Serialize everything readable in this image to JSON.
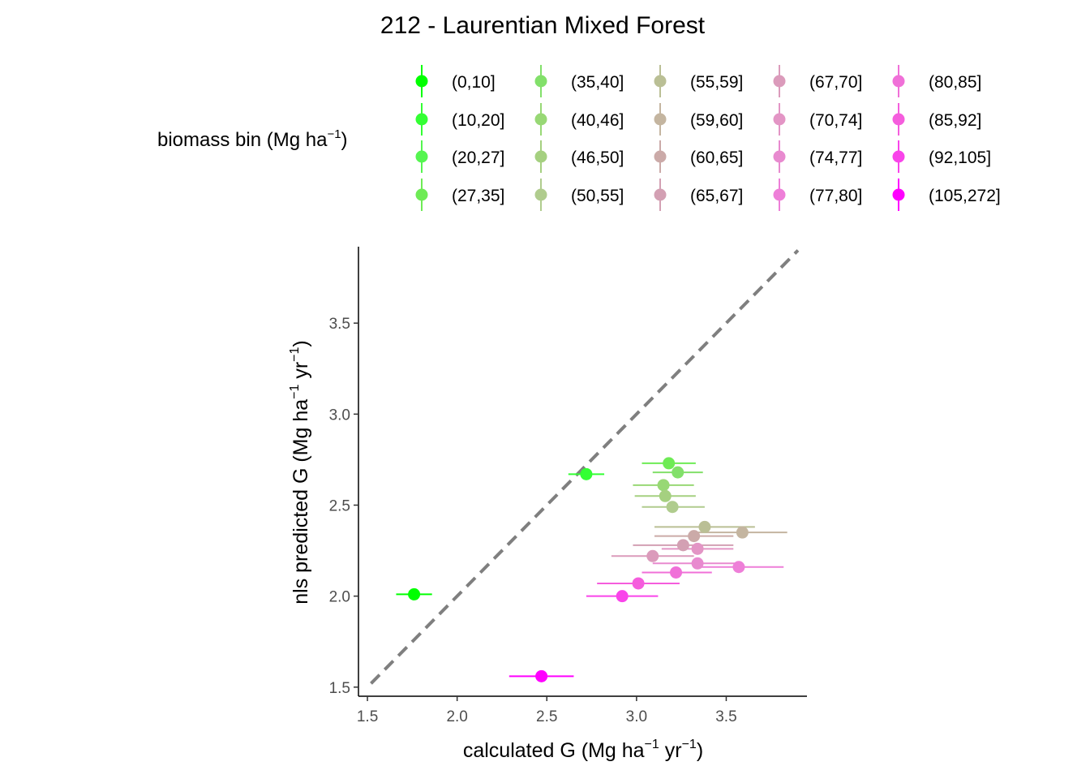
{
  "chart_data": {
    "type": "scatter",
    "title": "212 - Laurentian Mixed Forest",
    "xlabel": {
      "base": "calculated G (Mg ha",
      "sup1": "−1",
      "mid": " yr",
      "sup2": "−1",
      "end": ")"
    },
    "ylabel": {
      "base": "nls predicted G (Mg ha",
      "sup1": "−1",
      "mid": " yr",
      "sup2": "−1",
      "end": ")"
    },
    "xlim": [
      1.45,
      3.95
    ],
    "ylim": [
      1.45,
      3.92
    ],
    "x_ticks": [
      "1.5",
      "2.0",
      "2.5",
      "3.0",
      "3.5"
    ],
    "y_ticks": [
      "1.5",
      "2.0",
      "2.5",
      "3.0",
      "3.5"
    ],
    "grid": false,
    "reference_line": {
      "type": "identity",
      "style": "dashed",
      "color": "#7f7f7f",
      "from": 1.52,
      "to": 3.9
    },
    "legend": {
      "title": {
        "base": "biomass bin (Mg ha",
        "sup": "−1",
        "end": ")"
      },
      "position": "top",
      "ncol": 5
    },
    "series": [
      {
        "name": "(0,10]",
        "color": "#00FF00",
        "x": 1.76,
        "y": 2.01,
        "xerr": [
          1.66,
          1.86
        ]
      },
      {
        "name": "(10,20]",
        "color": "#33FF33",
        "x": 2.72,
        "y": 2.67,
        "xerr": [
          2.62,
          2.82
        ]
      },
      {
        "name": "(20,27]",
        "color": "#55F550",
        "x": null,
        "y": null,
        "xerr": null
      },
      {
        "name": "(27,35]",
        "color": "#6EEB55",
        "x": 3.18,
        "y": 2.73,
        "xerr": [
          3.03,
          3.33
        ]
      },
      {
        "name": "(35,40]",
        "color": "#82E06A",
        "x": 3.23,
        "y": 2.68,
        "xerr": [
          3.09,
          3.37
        ]
      },
      {
        "name": "(40,46]",
        "color": "#98D875",
        "x": 3.15,
        "y": 2.61,
        "xerr": [
          2.98,
          3.32
        ]
      },
      {
        "name": "(46,50]",
        "color": "#A5D080",
        "x": 3.16,
        "y": 2.55,
        "xerr": [
          2.99,
          3.33
        ]
      },
      {
        "name": "(50,55]",
        "color": "#B0CC8E",
        "x": 3.2,
        "y": 2.49,
        "xerr": [
          3.03,
          3.38
        ]
      },
      {
        "name": "(55,59]",
        "color": "#BABF95",
        "x": 3.38,
        "y": 2.38,
        "xerr": [
          3.1,
          3.66
        ]
      },
      {
        "name": "(59,60]",
        "color": "#C4B5A0",
        "x": 3.59,
        "y": 2.35,
        "xerr": [
          3.34,
          3.84
        ]
      },
      {
        "name": "(60,65]",
        "color": "#CBAAA8",
        "x": 3.32,
        "y": 2.33,
        "xerr": [
          3.1,
          3.54
        ]
      },
      {
        "name": "(65,67]",
        "color": "#D3A0B3",
        "x": 3.26,
        "y": 2.28,
        "xerr": [
          2.98,
          3.54
        ]
      },
      {
        "name": "(67,70]",
        "color": "#DB9BBB",
        "x": 3.09,
        "y": 2.22,
        "xerr": [
          2.86,
          3.32
        ]
      },
      {
        "name": "(70,74]",
        "color": "#E395C5",
        "x": 3.34,
        "y": 2.26,
        "xerr": [
          3.14,
          3.54
        ]
      },
      {
        "name": "(74,77]",
        "color": "#E88ACF",
        "x": 3.34,
        "y": 2.18,
        "xerr": [
          3.09,
          3.59
        ]
      },
      {
        "name": "(77,80]",
        "color": "#EE7FD8",
        "x": 3.57,
        "y": 2.16,
        "xerr": [
          3.34,
          3.82
        ]
      },
      {
        "name": "(80,85]",
        "color": "#F070D8",
        "x": 3.22,
        "y": 2.13,
        "xerr": [
          3.03,
          3.42
        ]
      },
      {
        "name": "(85,92]",
        "color": "#F55DDD",
        "x": 3.01,
        "y": 2.07,
        "xerr": [
          2.78,
          3.24
        ]
      },
      {
        "name": "(92,105]",
        "color": "#F944EA",
        "x": 2.92,
        "y": 2.0,
        "xerr": [
          2.72,
          3.12
        ]
      },
      {
        "name": "(105,272]",
        "color": "#FF00FF",
        "x": 2.47,
        "y": 1.56,
        "xerr": [
          2.29,
          2.65
        ]
      }
    ]
  }
}
